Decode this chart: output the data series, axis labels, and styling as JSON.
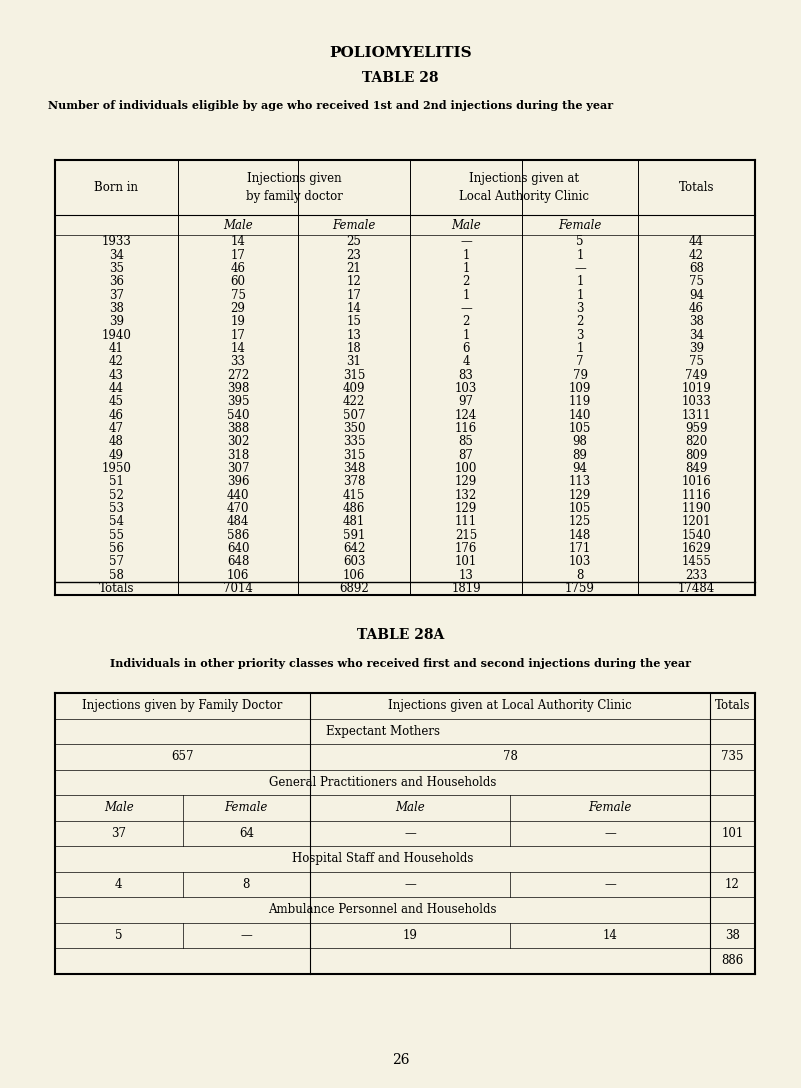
{
  "bg_color": "#f5f2e3",
  "title1": "POLIOMYELITIS",
  "title2": "TABLE 28",
  "subtitle1": "Number of individuals eligible by age who received 1st and 2nd injections during the year",
  "table28_rows": [
    [
      "1933",
      "14",
      "25",
      "—",
      "5",
      "44"
    ],
    [
      "34",
      "17",
      "23",
      "1",
      "1",
      "42"
    ],
    [
      "35",
      "46",
      "21",
      "1",
      "—",
      "68"
    ],
    [
      "36",
      "60",
      "12",
      "2",
      "1",
      "75"
    ],
    [
      "37",
      "75",
      "17",
      "1",
      "1",
      "94"
    ],
    [
      "38",
      "29",
      "14",
      "—",
      "3",
      "46"
    ],
    [
      "39",
      "19",
      "15",
      "2",
      "2",
      "38"
    ],
    [
      "1940",
      "17",
      "13",
      "1",
      "3",
      "34"
    ],
    [
      "41",
      "14",
      "18",
      "6",
      "1",
      "39"
    ],
    [
      "42",
      "33",
      "31",
      "4",
      "7",
      "75"
    ],
    [
      "43",
      "272",
      "315",
      "83",
      "79",
      "749"
    ],
    [
      "44",
      "398",
      "409",
      "103",
      "109",
      "1019"
    ],
    [
      "45",
      "395",
      "422",
      "97",
      "119",
      "1033"
    ],
    [
      "46",
      "540",
      "507",
      "124",
      "140",
      "1311"
    ],
    [
      "47",
      "388",
      "350",
      "116",
      "105",
      "959"
    ],
    [
      "48",
      "302",
      "335",
      "85",
      "98",
      "820"
    ],
    [
      "49",
      "318",
      "315",
      "87",
      "89",
      "809"
    ],
    [
      "1950",
      "307",
      "348",
      "100",
      "94",
      "849"
    ],
    [
      "51",
      "396",
      "378",
      "129",
      "113",
      "1016"
    ],
    [
      "52",
      "440",
      "415",
      "132",
      "129",
      "1116"
    ],
    [
      "53",
      "470",
      "486",
      "129",
      "105",
      "1190"
    ],
    [
      "54",
      "484",
      "481",
      "111",
      "125",
      "1201"
    ],
    [
      "55",
      "586",
      "591",
      "215",
      "148",
      "1540"
    ],
    [
      "56",
      "640",
      "642",
      "176",
      "171",
      "1629"
    ],
    [
      "57",
      "648",
      "603",
      "101",
      "103",
      "1455"
    ],
    [
      "58",
      "106",
      "106",
      "13",
      "8",
      "233"
    ]
  ],
  "table28_totals": [
    "Totals",
    "7014",
    "6892",
    "1819",
    "1759",
    "17484"
  ],
  "title_28a": "TABLE 28A",
  "subtitle_28a": "Individuals in other priority classes who received first and second injections during the year",
  "table28a_expectant": "Expectant Mothers",
  "table28a_expectant_data": [
    "657",
    "78",
    "735"
  ],
  "table28a_gp": "General Practitioners and Households",
  "table28a_gp_data": [
    "37",
    "64",
    "—",
    "—",
    "101"
  ],
  "table28a_hospital": "Hospital Staff and Households",
  "table28a_hospital_data": [
    "4",
    "8",
    "—",
    "—",
    "12"
  ],
  "table28a_ambulance": "Ambulance Personnel and Households",
  "table28a_ambulance_data": [
    "5",
    "—",
    "19",
    "14",
    "38"
  ],
  "table28a_grand_total": "886",
  "page_number": "26"
}
